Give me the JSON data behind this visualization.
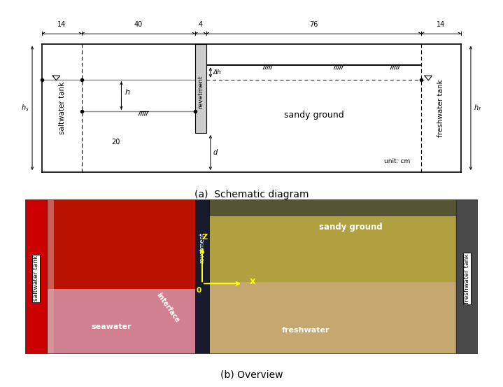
{
  "fig_width": 7.19,
  "fig_height": 5.53,
  "dpi": 100,
  "bg_color": "#ffffff",
  "panel_a_caption": "(a)  Schematic diagram",
  "panel_b_caption": "(b) Overview",
  "labels": {
    "saltwater_tank": "saltwater tank",
    "freshwater_tank": "freshwater tank",
    "sandy_ground": "sandy ground",
    "revetment": "revetment",
    "unit": "unit: cm",
    "h": "h",
    "d": "d",
    "delta_h": "Δh",
    "hs": "h_s",
    "hf": "h_f",
    "twenty": "20",
    "seawater": "seawater",
    "freshwater": "freshwater",
    "interface": "interface",
    "Z": "Z",
    "X": "X",
    "O": "0"
  },
  "colors": {
    "saltwater_red": "#cc2200",
    "saltwater_pink": "#d9758a",
    "sandy": "#b8a040",
    "freshwater_zone": "#c8a878",
    "revetment_dark": "#1a1a30",
    "left_strip_red": "#cc0000",
    "right_strip_dark": "#444444"
  }
}
